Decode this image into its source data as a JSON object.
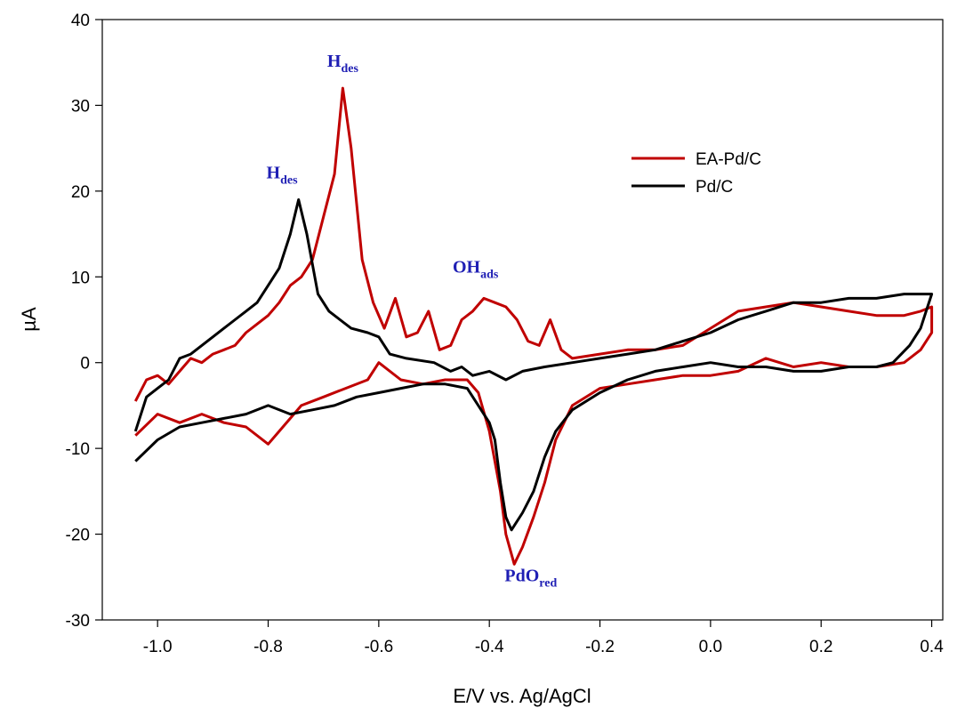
{
  "chart_data": {
    "type": "line",
    "xlabel": "E/V vs. Ag/AgCl",
    "ylabel": "µA",
    "xlim": [
      -1.1,
      0.42
    ],
    "ylim": [
      -30,
      40
    ],
    "x_ticks": [
      -1.0,
      -0.8,
      -0.6,
      -0.4,
      -0.2,
      0.0,
      0.2,
      0.4
    ],
    "x_tick_labels": [
      "-1.0",
      "-0.8",
      "-0.6",
      "-0.4",
      "-0.2",
      "0.0",
      "0.2",
      "0.4"
    ],
    "y_ticks": [
      -30,
      -20,
      -10,
      0,
      10,
      20,
      30,
      40
    ],
    "y_tick_labels": [
      "-30",
      "-20",
      "-10",
      "0",
      "10",
      "20",
      "30",
      "40"
    ],
    "grid": false,
    "legend_position": "top-right",
    "series": [
      {
        "name": "EA-Pd/C",
        "color": "#c00000",
        "points": [
          [
            -1.04,
            -4.5
          ],
          [
            -1.02,
            -2.0
          ],
          [
            -1.0,
            -1.5
          ],
          [
            -0.98,
            -2.5
          ],
          [
            -0.96,
            -1.0
          ],
          [
            -0.94,
            0.5
          ],
          [
            -0.92,
            0.0
          ],
          [
            -0.9,
            1.0
          ],
          [
            -0.88,
            1.5
          ],
          [
            -0.86,
            2.0
          ],
          [
            -0.84,
            3.5
          ],
          [
            -0.82,
            4.5
          ],
          [
            -0.8,
            5.5
          ],
          [
            -0.78,
            7.0
          ],
          [
            -0.76,
            9.0
          ],
          [
            -0.74,
            10.0
          ],
          [
            -0.72,
            12.0
          ],
          [
            -0.7,
            17.0
          ],
          [
            -0.68,
            22.0
          ],
          [
            -0.665,
            32.0
          ],
          [
            -0.65,
            25.0
          ],
          [
            -0.63,
            12.0
          ],
          [
            -0.61,
            7.0
          ],
          [
            -0.59,
            4.0
          ],
          [
            -0.57,
            7.5
          ],
          [
            -0.55,
            3.0
          ],
          [
            -0.53,
            3.5
          ],
          [
            -0.51,
            6.0
          ],
          [
            -0.49,
            1.5
          ],
          [
            -0.47,
            2.0
          ],
          [
            -0.45,
            5.0
          ],
          [
            -0.43,
            6.0
          ],
          [
            -0.41,
            7.5
          ],
          [
            -0.39,
            7.0
          ],
          [
            -0.37,
            6.5
          ],
          [
            -0.35,
            5.0
          ],
          [
            -0.33,
            2.5
          ],
          [
            -0.31,
            2.0
          ],
          [
            -0.29,
            5.0
          ],
          [
            -0.27,
            1.5
          ],
          [
            -0.25,
            0.5
          ],
          [
            -0.2,
            1.0
          ],
          [
            -0.15,
            1.5
          ],
          [
            -0.1,
            1.5
          ],
          [
            -0.05,
            2.0
          ],
          [
            0.0,
            4.0
          ],
          [
            0.05,
            6.0
          ],
          [
            0.1,
            6.5
          ],
          [
            0.15,
            7.0
          ],
          [
            0.2,
            6.5
          ],
          [
            0.25,
            6.0
          ],
          [
            0.3,
            5.5
          ],
          [
            0.35,
            5.5
          ],
          [
            0.38,
            6.0
          ],
          [
            0.4,
            6.5
          ],
          [
            0.4,
            3.5
          ],
          [
            0.38,
            1.5
          ],
          [
            0.35,
            0.0
          ],
          [
            0.3,
            -0.5
          ],
          [
            0.25,
            -0.5
          ],
          [
            0.2,
            0.0
          ],
          [
            0.15,
            -0.5
          ],
          [
            0.1,
            0.5
          ],
          [
            0.05,
            -1.0
          ],
          [
            0.0,
            -1.5
          ],
          [
            -0.05,
            -1.5
          ],
          [
            -0.1,
            -2.0
          ],
          [
            -0.15,
            -2.5
          ],
          [
            -0.2,
            -3.0
          ],
          [
            -0.25,
            -5.0
          ],
          [
            -0.28,
            -9.0
          ],
          [
            -0.3,
            -14.0
          ],
          [
            -0.32,
            -18.0
          ],
          [
            -0.34,
            -21.5
          ],
          [
            -0.355,
            -23.5
          ],
          [
            -0.37,
            -20.0
          ],
          [
            -0.38,
            -15.0
          ],
          [
            -0.4,
            -8.0
          ],
          [
            -0.42,
            -3.5
          ],
          [
            -0.44,
            -2.0
          ],
          [
            -0.48,
            -2.0
          ],
          [
            -0.52,
            -2.5
          ],
          [
            -0.56,
            -2.0
          ],
          [
            -0.6,
            0.0
          ],
          [
            -0.62,
            -2.0
          ],
          [
            -0.66,
            -3.0
          ],
          [
            -0.7,
            -4.0
          ],
          [
            -0.74,
            -5.0
          ],
          [
            -0.78,
            -8.0
          ],
          [
            -0.8,
            -9.5
          ],
          [
            -0.84,
            -7.5
          ],
          [
            -0.88,
            -7.0
          ],
          [
            -0.92,
            -6.0
          ],
          [
            -0.96,
            -7.0
          ],
          [
            -1.0,
            -6.0
          ],
          [
            -1.04,
            -8.5
          ]
        ]
      },
      {
        "name": "Pd/C",
        "color": "#000000",
        "points": [
          [
            -1.04,
            -8.0
          ],
          [
            -1.02,
            -4.0
          ],
          [
            -1.0,
            -3.0
          ],
          [
            -0.98,
            -2.0
          ],
          [
            -0.96,
            0.5
          ],
          [
            -0.94,
            1.0
          ],
          [
            -0.92,
            2.0
          ],
          [
            -0.9,
            3.0
          ],
          [
            -0.88,
            4.0
          ],
          [
            -0.86,
            5.0
          ],
          [
            -0.84,
            6.0
          ],
          [
            -0.82,
            7.0
          ],
          [
            -0.8,
            9.0
          ],
          [
            -0.78,
            11.0
          ],
          [
            -0.76,
            15.0
          ],
          [
            -0.745,
            19.0
          ],
          [
            -0.73,
            15.0
          ],
          [
            -0.71,
            8.0
          ],
          [
            -0.69,
            6.0
          ],
          [
            -0.67,
            5.0
          ],
          [
            -0.65,
            4.0
          ],
          [
            -0.62,
            3.5
          ],
          [
            -0.6,
            3.0
          ],
          [
            -0.58,
            1.0
          ],
          [
            -0.55,
            0.5
          ],
          [
            -0.5,
            0.0
          ],
          [
            -0.47,
            -1.0
          ],
          [
            -0.45,
            -0.5
          ],
          [
            -0.43,
            -1.5
          ],
          [
            -0.4,
            -1.0
          ],
          [
            -0.37,
            -2.0
          ],
          [
            -0.34,
            -1.0
          ],
          [
            -0.3,
            -0.5
          ],
          [
            -0.25,
            0.0
          ],
          [
            -0.2,
            0.5
          ],
          [
            -0.15,
            1.0
          ],
          [
            -0.1,
            1.5
          ],
          [
            -0.05,
            2.5
          ],
          [
            0.0,
            3.5
          ],
          [
            0.05,
            5.0
          ],
          [
            0.1,
            6.0
          ],
          [
            0.15,
            7.0
          ],
          [
            0.2,
            7.0
          ],
          [
            0.25,
            7.5
          ],
          [
            0.3,
            7.5
          ],
          [
            0.35,
            8.0
          ],
          [
            0.4,
            8.0
          ],
          [
            0.39,
            6.0
          ],
          [
            0.38,
            4.0
          ],
          [
            0.36,
            2.0
          ],
          [
            0.33,
            0.0
          ],
          [
            0.3,
            -0.5
          ],
          [
            0.25,
            -0.5
          ],
          [
            0.2,
            -1.0
          ],
          [
            0.15,
            -1.0
          ],
          [
            0.1,
            -0.5
          ],
          [
            0.05,
            -0.5
          ],
          [
            0.0,
            0.0
          ],
          [
            -0.05,
            -0.5
          ],
          [
            -0.1,
            -1.0
          ],
          [
            -0.15,
            -2.0
          ],
          [
            -0.2,
            -3.5
          ],
          [
            -0.25,
            -5.5
          ],
          [
            -0.28,
            -8.0
          ],
          [
            -0.3,
            -11.0
          ],
          [
            -0.32,
            -15.0
          ],
          [
            -0.34,
            -17.5
          ],
          [
            -0.36,
            -19.5
          ],
          [
            -0.37,
            -18.0
          ],
          [
            -0.38,
            -14.0
          ],
          [
            -0.39,
            -9.0
          ],
          [
            -0.4,
            -7.0
          ],
          [
            -0.42,
            -5.0
          ],
          [
            -0.44,
            -3.0
          ],
          [
            -0.48,
            -2.5
          ],
          [
            -0.52,
            -2.5
          ],
          [
            -0.56,
            -3.0
          ],
          [
            -0.6,
            -3.5
          ],
          [
            -0.64,
            -4.0
          ],
          [
            -0.68,
            -5.0
          ],
          [
            -0.72,
            -5.5
          ],
          [
            -0.76,
            -6.0
          ],
          [
            -0.8,
            -5.0
          ],
          [
            -0.84,
            -6.0
          ],
          [
            -0.88,
            -6.5
          ],
          [
            -0.92,
            -7.0
          ],
          [
            -0.96,
            -7.5
          ],
          [
            -1.0,
            -9.0
          ],
          [
            -1.04,
            -11.5
          ]
        ]
      }
    ],
    "annotations": [
      {
        "main": "H",
        "sub": "des",
        "x": -0.665,
        "y": 34.5
      },
      {
        "main": "H",
        "sub": "des",
        "x": -0.775,
        "y": 21.5
      },
      {
        "main": "OH",
        "sub": "ads",
        "x": -0.425,
        "y": 10.5
      },
      {
        "main": "PdO",
        "sub": "red",
        "x": -0.325,
        "y": -25.5
      }
    ]
  }
}
